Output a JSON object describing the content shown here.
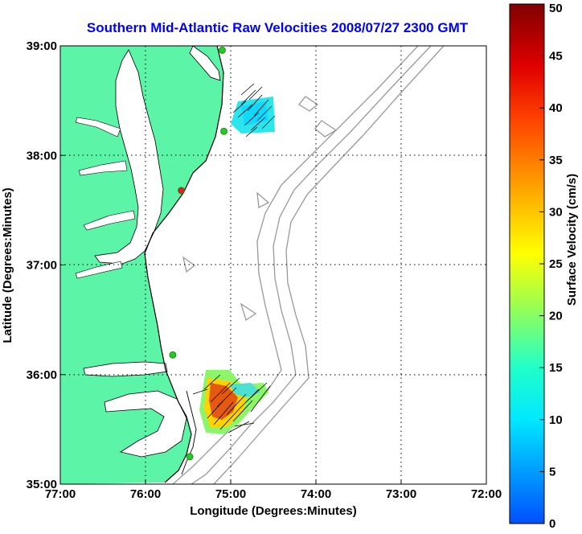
{
  "title": "Southern Mid-Atlantic Raw Velocities 2008/07/27 2300 GMT",
  "xlabel": "Longitude (Degrees:Minutes)",
  "ylabel": "Latitude (Degrees:Minutes)",
  "colorbar_label": "Surface Velocity (cm/s)",
  "x_ticks": [
    "77:00",
    "76:00",
    "75:00",
    "74:00",
    "73:00",
    "72:00"
  ],
  "y_ticks": [
    "39:00",
    "38:00",
    "37:00",
    "36:00",
    "35:00"
  ],
  "colorbar_ticks": [
    "0",
    "5",
    "10",
    "15",
    "20",
    "25",
    "30",
    "35",
    "40",
    "45",
    "50"
  ],
  "colors": {
    "title": "#0000ff",
    "land": "#5cf5a8",
    "ocean": "#ffffff",
    "coastline": "#000000",
    "bathymetry": "#999999",
    "station_active": "#22cc22",
    "station_alert": "#dd2222"
  },
  "colorbar_range": [
    0,
    50
  ],
  "grid": "dotted",
  "chart_data": {
    "type": "heatmap",
    "title": "Southern Mid-Atlantic Raw Velocities 2008/07/27 2300 GMT",
    "xlabel": "Longitude (Degrees:Minutes)",
    "ylabel": "Latitude (Degrees:Minutes)",
    "xlim": [
      -77,
      -72
    ],
    "ylim": [
      35,
      39
    ],
    "colorbar": {
      "label": "Surface Velocity (cm/s)",
      "range": [
        0,
        50
      ]
    },
    "stations": [
      {
        "lon": -75.1,
        "lat": 38.96,
        "status": "active"
      },
      {
        "lon": -75.08,
        "lat": 38.22,
        "status": "active"
      },
      {
        "lon": -75.58,
        "lat": 37.68,
        "status": "alert"
      },
      {
        "lon": -75.68,
        "lat": 36.18,
        "status": "active"
      },
      {
        "lon": -75.48,
        "lat": 35.25,
        "status": "active"
      }
    ],
    "regions": [
      {
        "name_hidden": true,
        "bounds": {
          "lon": [
            -75.1,
            -74.5
          ],
          "lat": [
            38.22,
            38.55
          ]
        },
        "speed_range": [
          8,
          13
        ]
      },
      {
        "name_hidden": true,
        "bounds": {
          "lon": [
            -75.45,
            -74.55
          ],
          "lat": [
            35.5,
            36.05
          ]
        },
        "speed_range": [
          15,
          38
        ]
      }
    ]
  }
}
